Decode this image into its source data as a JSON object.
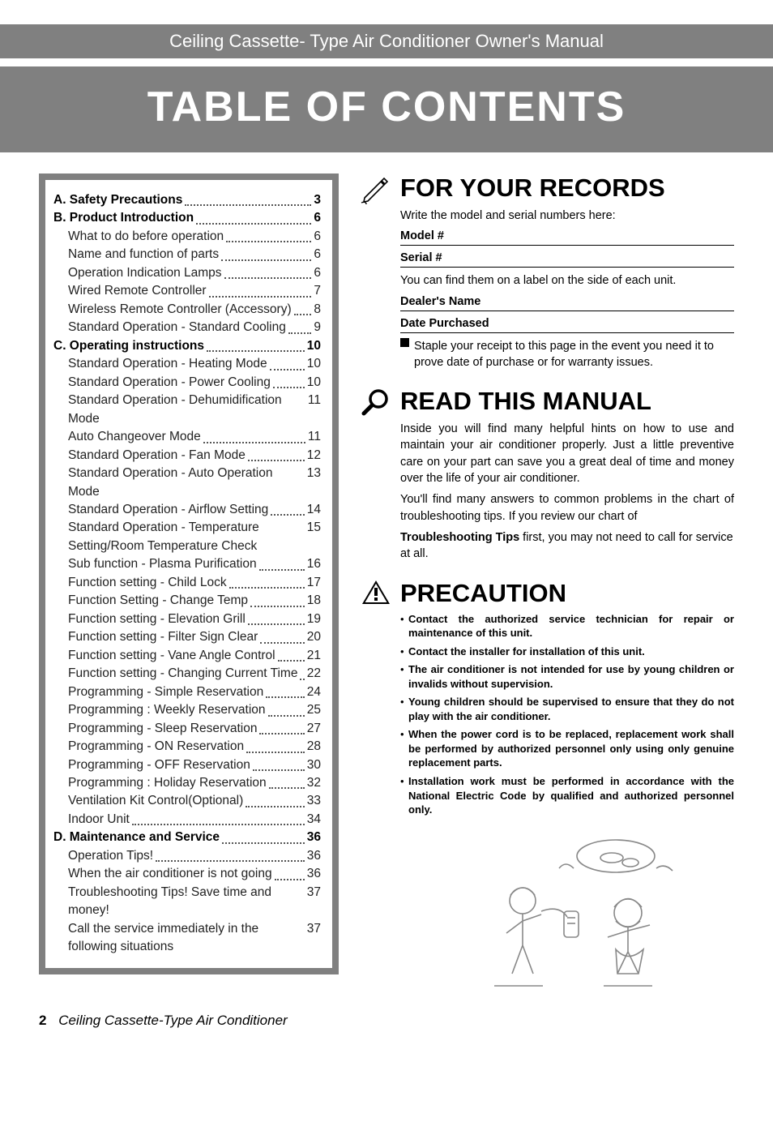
{
  "header": {
    "topbar": "Ceiling Cassette- Type Air Conditioner Owner's Manual",
    "title": "TABLE OF CONTENTS"
  },
  "toc": [
    {
      "lvl": "a",
      "t": "A. Safety Precautions",
      "p": "3"
    },
    {
      "lvl": "a",
      "t": "B. Product Introduction",
      "p": "6"
    },
    {
      "lvl": "b",
      "t": "What to do before operation",
      "p": "6"
    },
    {
      "lvl": "b",
      "t": "Name and function of parts",
      "p": "6"
    },
    {
      "lvl": "b",
      "t": "Operation Indication Lamps",
      "p": "6"
    },
    {
      "lvl": "b",
      "t": "Wired Remote Controller",
      "p": "7"
    },
    {
      "lvl": "b",
      "t": "Wireless Remote Controller (Accessory)",
      "p": "8"
    },
    {
      "lvl": "b",
      "t": "Standard Operation - Standard Cooling",
      "p": "9"
    },
    {
      "lvl": "a",
      "t": "C. Operating instructions",
      "p": "10"
    },
    {
      "lvl": "b",
      "t": "Standard Operation - Heating Mode",
      "p": "10"
    },
    {
      "lvl": "b",
      "t": "Standard Operation - Power Cooling",
      "p": "10"
    },
    {
      "lvl": "b",
      "t": "Standard Operation - Dehumidification Mode",
      "p": "11"
    },
    {
      "lvl": "b",
      "t": "Auto Changeover Mode",
      "p": "11"
    },
    {
      "lvl": "b",
      "t": "Standard Operation - Fan Mode",
      "p": "12"
    },
    {
      "lvl": "b",
      "t": "Standard Operation - Auto Operation Mode",
      "p": "13"
    },
    {
      "lvl": "b",
      "t": "Standard Operation - Airflow Setting",
      "p": "14"
    },
    {
      "lvl": "b",
      "t": "Standard Operation - Temperature Setting/Room Temperature Check",
      "p": "15"
    },
    {
      "lvl": "b",
      "t": "Sub function - Plasma Purification",
      "p": "16"
    },
    {
      "lvl": "b",
      "t": "Function setting - Child Lock",
      "p": "17"
    },
    {
      "lvl": "b",
      "t": "Function Setting - Change Temp",
      "p": "18"
    },
    {
      "lvl": "b",
      "t": "Function setting - Elevation Grill",
      "p": "19"
    },
    {
      "lvl": "b",
      "t": "Function setting - Filter Sign Clear",
      "p": "20"
    },
    {
      "lvl": "b",
      "t": "Function setting - Vane Angle Control",
      "p": "21"
    },
    {
      "lvl": "b",
      "t": "Function  setting - Changing Current Time",
      "p": "22"
    },
    {
      "lvl": "b",
      "t": "Programming - Simple Reservation",
      "p": "24"
    },
    {
      "lvl": "b",
      "t": "Programming : Weekly Reservation",
      "p": "25"
    },
    {
      "lvl": "b",
      "t": "Programming - Sleep Reservation",
      "p": "27"
    },
    {
      "lvl": "b",
      "t": "Programming - ON Reservation",
      "p": "28"
    },
    {
      "lvl": "b",
      "t": "Programming - OFF Reservation",
      "p": "30"
    },
    {
      "lvl": "b",
      "t": "Programming : Holiday Reservation",
      "p": "32"
    },
    {
      "lvl": "b",
      "t": "Ventilation Kit Control(Optional)",
      "p": "33"
    },
    {
      "lvl": "b",
      "t": "Indoor Unit",
      "p": "34"
    },
    {
      "lvl": "a",
      "t": "D. Maintenance and Service",
      "p": "36"
    },
    {
      "lvl": "b",
      "t": "Operation Tips!",
      "p": "36"
    },
    {
      "lvl": "b",
      "t": "When the air conditioner is not going",
      "p": "36"
    },
    {
      "lvl": "b",
      "t": "Troubleshooting Tips! Save time and money!",
      "p": "37"
    },
    {
      "lvl": "b",
      "t": "Call the service immediately in the following situations",
      "p": "37"
    }
  ],
  "records": {
    "heading": "FOR YOUR RECORDS",
    "intro": "Write the model and serial numbers here:",
    "model": "Model #",
    "serial": "Serial #",
    "find": "You can find them on a label on the side of each unit.",
    "dealer": "Dealer's Name",
    "date": "Date Purchased",
    "staple": "Staple your receipt to this page in the event you need it to prove date of purchase or for warranty issues."
  },
  "read": {
    "heading": "READ THIS MANUAL",
    "p1": "Inside you will find many helpful hints on how to use and maintain your air conditioner properly. Just a little preventive care on your part can save you a great deal of time and money over the life of your air conditioner.",
    "p2": "You'll find many answers to common problems in the chart of troubleshooting tips. If you review our chart of",
    "p3a": "Troubleshooting Tips",
    "p3b": " first, you may not need to call for service at all."
  },
  "precaution": {
    "heading": "PRECAUTION",
    "items": [
      "Contact the authorized service technician for repair or maintenance of this unit.",
      "Contact the installer for installation of this unit.",
      "The air conditioner is not intended for use by young children or invalids without supervision.",
      "Young children should be supervised to ensure that they do not play with the air conditioner.",
      "When the power cord is to be replaced, replacement work shall be performed by authorized personnel only using only genuine replacement parts.",
      "Installation work must be performed in accordance with the National Electric Code by qualified and authorized personnel only."
    ]
  },
  "footer": {
    "num": "2",
    "text": "Ceiling Cassette-Type Air Conditioner"
  },
  "colors": {
    "gray": "#808080",
    "text": "#222",
    "black": "#000"
  }
}
